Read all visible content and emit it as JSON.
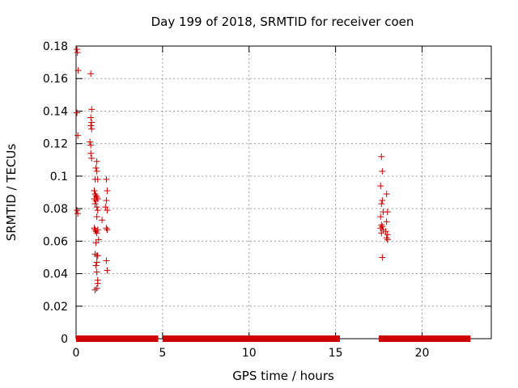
{
  "chart_data": {
    "type": "scatter",
    "title": "Day 199 of 2018, SRMTID for receiver coen",
    "xlabel": "GPS time / hours",
    "ylabel": "SRMTID / TECUs",
    "xlim": [
      0,
      24
    ],
    "ylim": [
      0,
      0.18
    ],
    "xticks": [
      0,
      5,
      10,
      15,
      20
    ],
    "xtick_labels": [
      "0",
      "5",
      "10",
      "15",
      "20"
    ],
    "yticks": [
      0,
      0.02,
      0.04,
      0.06,
      0.08,
      0.1,
      0.12,
      0.14,
      0.16,
      0.18
    ],
    "ytick_labels": [
      "0",
      "0.02",
      "0.04",
      "0.06",
      "0.08",
      "0.1",
      "0.12",
      "0.14",
      "0.16",
      "0.18"
    ],
    "grid": true,
    "marker": "+",
    "marker_color": "#cc0000",
    "zero_band": {
      "x_start": 0.0,
      "x_end": 22.8,
      "y": 0,
      "gaps": [
        [
          4.75,
          5.0
        ],
        [
          15.25,
          17.5
        ]
      ]
    },
    "points": [
      [
        0.05,
        0.178
      ],
      [
        0.08,
        0.176
      ],
      [
        0.12,
        0.165
      ],
      [
        0.05,
        0.139
      ],
      [
        0.1,
        0.125
      ],
      [
        0.05,
        0.079
      ],
      [
        0.1,
        0.077
      ],
      [
        0.85,
        0.163
      ],
      [
        0.9,
        0.141
      ],
      [
        0.85,
        0.136
      ],
      [
        0.9,
        0.133
      ],
      [
        0.85,
        0.131
      ],
      [
        0.9,
        0.129
      ],
      [
        0.8,
        0.121
      ],
      [
        0.85,
        0.119
      ],
      [
        0.85,
        0.114
      ],
      [
        0.9,
        0.111
      ],
      [
        1.2,
        0.109
      ],
      [
        1.15,
        0.105
      ],
      [
        1.2,
        0.103
      ],
      [
        1.1,
        0.098
      ],
      [
        1.25,
        0.098
      ],
      [
        1.05,
        0.091
      ],
      [
        1.1,
        0.089
      ],
      [
        1.15,
        0.088
      ],
      [
        1.2,
        0.087
      ],
      [
        1.05,
        0.086
      ],
      [
        1.15,
        0.085
      ],
      [
        1.25,
        0.086
      ],
      [
        1.1,
        0.083
      ],
      [
        1.2,
        0.081
      ],
      [
        1.25,
        0.079
      ],
      [
        1.2,
        0.075
      ],
      [
        1.05,
        0.068
      ],
      [
        1.1,
        0.067
      ],
      [
        1.15,
        0.066
      ],
      [
        1.2,
        0.065
      ],
      [
        1.25,
        0.067
      ],
      [
        1.3,
        0.061
      ],
      [
        1.15,
        0.059
      ],
      [
        1.1,
        0.052
      ],
      [
        1.2,
        0.051
      ],
      [
        1.25,
        0.051
      ],
      [
        1.2,
        0.047
      ],
      [
        1.15,
        0.045
      ],
      [
        1.2,
        0.041
      ],
      [
        1.25,
        0.036
      ],
      [
        1.25,
        0.034
      ],
      [
        1.1,
        0.03
      ],
      [
        1.2,
        0.031
      ],
      [
        1.5,
        0.073
      ],
      [
        1.75,
        0.098
      ],
      [
        1.8,
        0.091
      ],
      [
        1.75,
        0.085
      ],
      [
        1.7,
        0.081
      ],
      [
        1.8,
        0.079
      ],
      [
        1.75,
        0.068
      ],
      [
        1.8,
        0.067
      ],
      [
        1.75,
        0.048
      ],
      [
        1.8,
        0.042
      ],
      [
        17.65,
        0.112
      ],
      [
        17.7,
        0.103
      ],
      [
        17.6,
        0.094
      ],
      [
        17.7,
        0.085
      ],
      [
        17.65,
        0.083
      ],
      [
        17.75,
        0.078
      ],
      [
        17.6,
        0.075
      ],
      [
        17.65,
        0.07
      ],
      [
        17.7,
        0.069
      ],
      [
        17.6,
        0.068
      ],
      [
        17.75,
        0.067
      ],
      [
        17.65,
        0.065
      ],
      [
        17.7,
        0.05
      ],
      [
        17.95,
        0.089
      ],
      [
        18.0,
        0.078
      ],
      [
        17.95,
        0.072
      ],
      [
        17.9,
        0.066
      ],
      [
        18.0,
        0.064
      ],
      [
        17.95,
        0.062
      ],
      [
        18.0,
        0.061
      ]
    ]
  }
}
